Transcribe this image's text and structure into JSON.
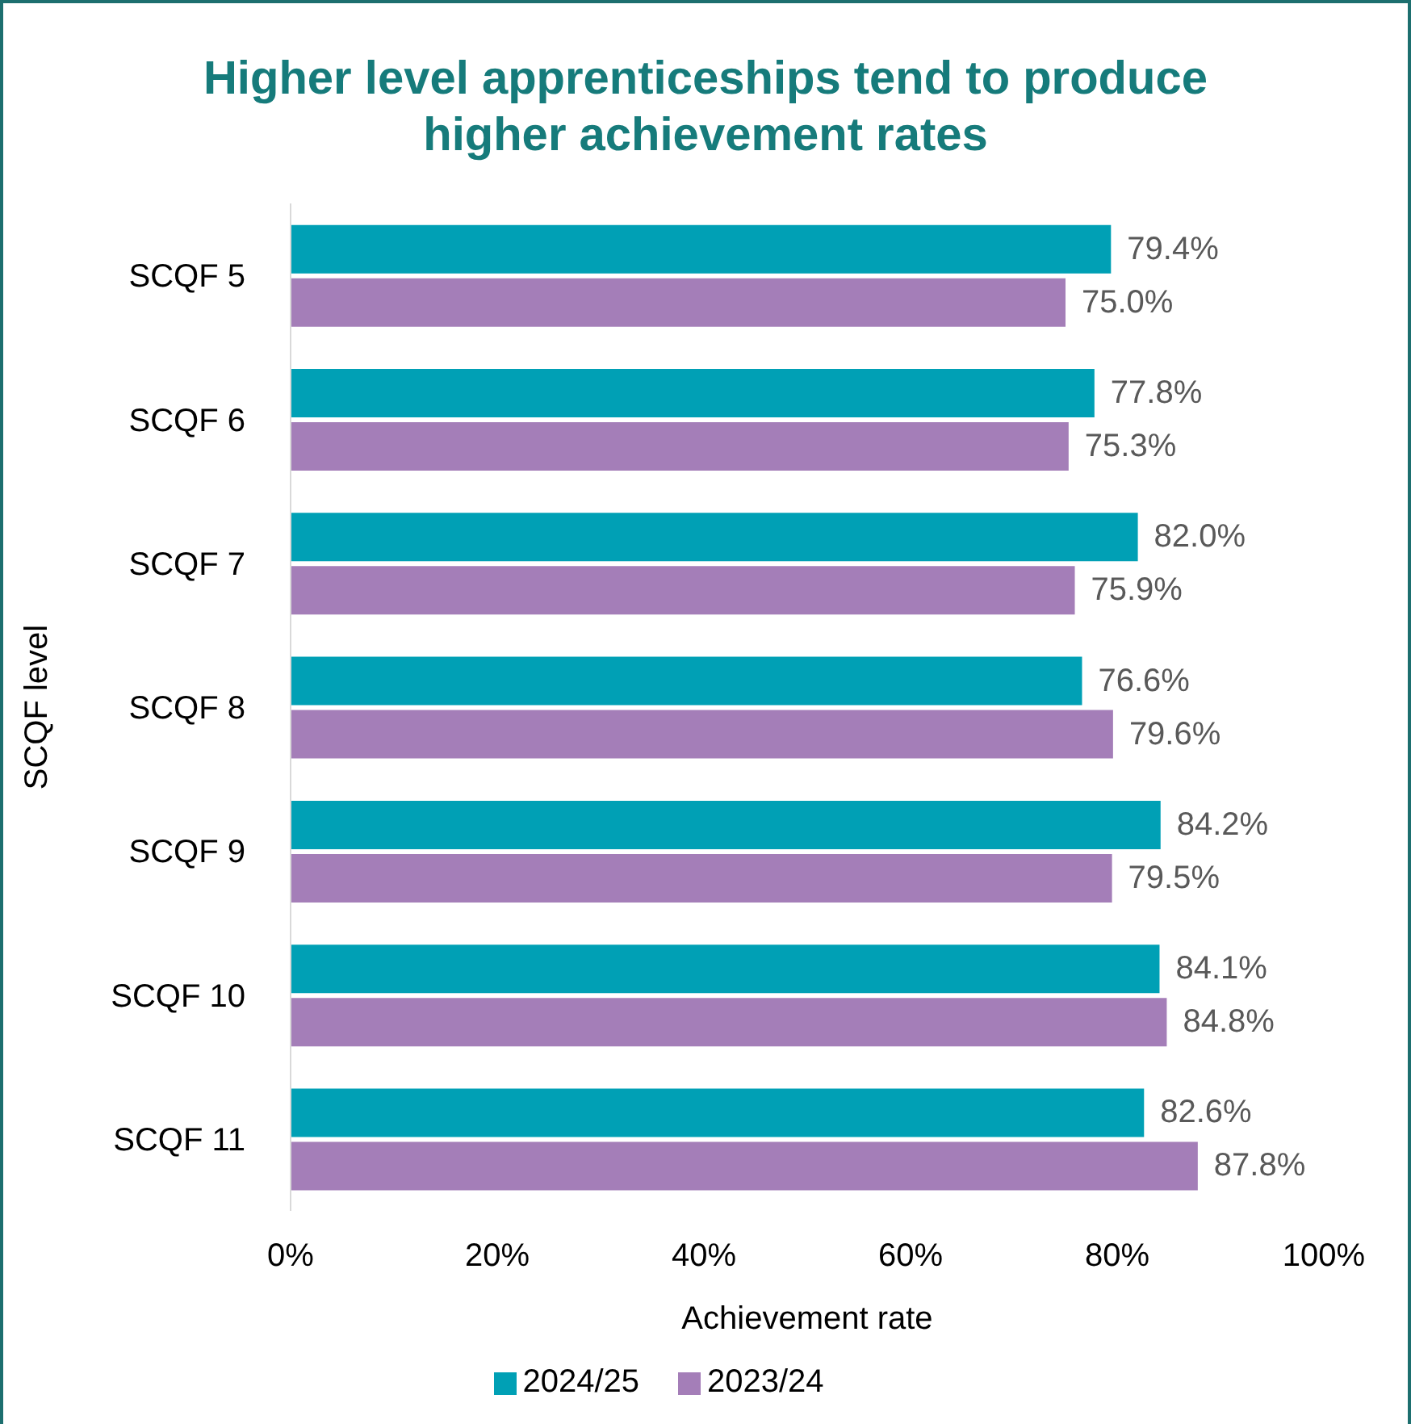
{
  "chart_data": {
    "type": "bar",
    "orientation": "horizontal",
    "title": "Higher level apprenticeships tend to produce higher achievement rates",
    "xlabel": "Achievement rate",
    "ylabel": "SCQF level",
    "categories": [
      "SCQF 5",
      "SCQF 6",
      "SCQF 7",
      "SCQF 8",
      "SCQF 9",
      "SCQF 10",
      "SCQF 11"
    ],
    "series": [
      {
        "name": "2024/25",
        "color": "#00a0b5",
        "values": [
          79.4,
          77.8,
          82.0,
          76.6,
          84.2,
          84.1,
          82.6
        ],
        "value_labels": [
          "79.4%",
          "77.8%",
          "82.0%",
          "76.6%",
          "84.2%",
          "84.1%",
          "82.6%"
        ]
      },
      {
        "name": "2023/24",
        "color": "#a47eb8",
        "values": [
          75.0,
          75.3,
          75.9,
          79.6,
          79.5,
          84.8,
          87.8
        ],
        "value_labels": [
          "75.0%",
          "75.3%",
          "75.9%",
          "79.6%",
          "79.5%",
          "84.8%",
          "87.8%"
        ]
      }
    ],
    "xlim": [
      0,
      100
    ],
    "xticks": [
      {
        "value": 0,
        "label": "0%"
      },
      {
        "value": 20,
        "label": "20%"
      },
      {
        "value": 40,
        "label": "40%"
      },
      {
        "value": 60,
        "label": "60%"
      },
      {
        "value": 80,
        "label": "80%"
      },
      {
        "value": 100,
        "label": "100%"
      }
    ],
    "grid": false,
    "legend": "bottom"
  }
}
